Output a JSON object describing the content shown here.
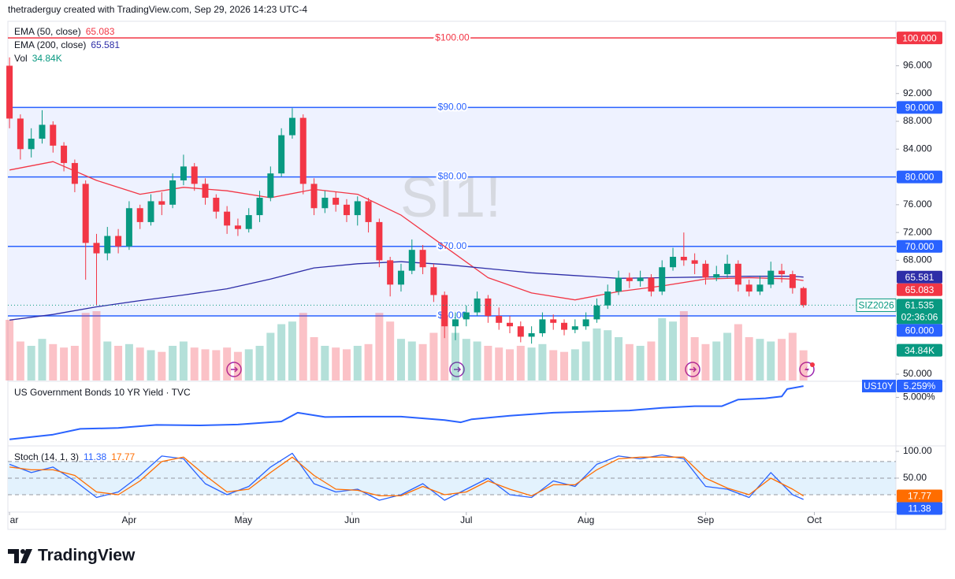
{
  "header": {
    "text": "thetraderguy created with TradingView.com, Sep 29, 2026 14:23 UTC-4"
  },
  "footer": {
    "brand": "TradingView"
  },
  "x_axis": {
    "xlim": [
      -0.3,
      163
    ],
    "xticks": [
      {
        "value": 0,
        "label": "ar"
      },
      {
        "value": 22,
        "label": "Apr"
      },
      {
        "value": 43,
        "label": "May"
      },
      {
        "value": 63,
        "label": "Jun"
      },
      {
        "value": 84,
        "label": "Jul"
      },
      {
        "value": 106,
        "label": "Aug"
      },
      {
        "value": 128,
        "label": "Sep"
      },
      {
        "value": 148,
        "label": "Oct"
      }
    ]
  },
  "chart_data": [
    {
      "type": "candlestick",
      "watermark": "SI1!",
      "symbol": "SIZ2026",
      "countdown": "02:36:06",
      "up_color": "#089981",
      "down_color": "#f23645",
      "x": [
        0,
        2,
        4,
        6,
        8,
        10,
        12,
        14,
        16,
        18,
        20,
        22,
        24,
        26,
        28,
        30,
        32,
        34,
        36,
        38,
        40,
        42,
        44,
        46,
        48,
        50,
        52,
        54,
        56,
        58,
        60,
        62,
        64,
        66,
        68,
        70,
        72,
        74,
        76,
        78,
        80,
        82,
        84,
        86,
        88,
        90,
        92,
        94,
        96,
        98,
        100,
        102,
        104,
        106,
        108,
        110,
        112,
        114,
        116,
        118,
        120,
        122,
        124,
        126,
        128,
        130,
        132,
        134,
        136,
        138,
        140,
        142,
        144,
        146
      ],
      "open": [
        96.0,
        88.4,
        84.0,
        85.5,
        87.5,
        84.5,
        82.0,
        79.0,
        70.5,
        69.0,
        71.5,
        70.0,
        75.5,
        73.5,
        76.5,
        76.0,
        79.5,
        81.5,
        79.0,
        77.0,
        75.0,
        73.0,
        72.5,
        74.5,
        77.0,
        80.5,
        86.0,
        88.5,
        79.0,
        75.5,
        77.0,
        76.0,
        74.5,
        76.5,
        73.5,
        68.0,
        64.5,
        66.5,
        69.5,
        67.0,
        63.0,
        58.5,
        59.5,
        60.5,
        62.5,
        60.0,
        59.0,
        58.5,
        57.0,
        57.5,
        59.5,
        59.0,
        58.0,
        58.5,
        59.5,
        61.5,
        63.5,
        65.5,
        65.0,
        65.5,
        63.5,
        67.0,
        68.5,
        68.0,
        67.5,
        65.5,
        66.0,
        67.5,
        64.5,
        63.5,
        64.5,
        66.5,
        66.0,
        64.0
      ],
      "high": [
        97.2,
        89.0,
        87.0,
        89.6,
        88.0,
        85.0,
        82.5,
        79.5,
        71.8,
        72.8,
        72.5,
        76.5,
        76.0,
        77.5,
        77.8,
        80.5,
        83.2,
        82.0,
        79.8,
        77.5,
        75.8,
        74.0,
        75.5,
        78.0,
        81.5,
        87.0,
        89.9,
        89.0,
        79.8,
        78.0,
        77.8,
        76.8,
        77.2,
        77.0,
        74.0,
        68.5,
        67.5,
        71.0,
        70.2,
        67.5,
        63.5,
        60.5,
        61.5,
        63.5,
        63.0,
        61.2,
        60.0,
        59.2,
        58.5,
        60.5,
        60.2,
        59.5,
        59.5,
        60.5,
        62.5,
        64.5,
        66.5,
        66.2,
        66.5,
        66.0,
        68.0,
        69.8,
        72.0,
        69.0,
        68.0,
        67.2,
        68.8,
        68.0,
        65.2,
        65.8,
        67.8,
        67.5,
        66.5,
        64.2
      ],
      "low": [
        87.0,
        82.5,
        82.8,
        84.8,
        83.5,
        80.8,
        77.8,
        65.2,
        61.5,
        68.0,
        69.0,
        69.5,
        72.5,
        73.0,
        74.5,
        75.5,
        78.8,
        78.0,
        76.0,
        74.0,
        71.8,
        71.5,
        72.0,
        73.5,
        76.5,
        80.0,
        85.5,
        77.5,
        74.5,
        74.8,
        75.0,
        73.5,
        73.0,
        72.0,
        67.0,
        62.8,
        63.5,
        66.0,
        66.0,
        62.0,
        56.8,
        56.5,
        58.5,
        60.0,
        59.0,
        58.0,
        57.5,
        56.2,
        56.0,
        57.0,
        58.0,
        57.2,
        57.5,
        58.0,
        59.0,
        61.0,
        63.0,
        64.0,
        64.2,
        62.8,
        63.0,
        66.5,
        67.2,
        66.0,
        64.5,
        65.0,
        65.5,
        63.5,
        62.8,
        63.0,
        64.0,
        64.8,
        63.2,
        61.2
      ],
      "close": [
        88.4,
        84.0,
        85.5,
        87.5,
        84.5,
        82.0,
        79.0,
        70.5,
        69.0,
        71.5,
        70.0,
        75.5,
        73.5,
        76.5,
        76.0,
        79.5,
        81.5,
        79.0,
        77.0,
        75.0,
        73.0,
        72.5,
        74.5,
        77.0,
        80.5,
        86.0,
        88.5,
        79.0,
        75.5,
        77.0,
        76.0,
        74.5,
        76.5,
        73.5,
        68.0,
        64.5,
        66.5,
        69.5,
        67.0,
        63.0,
        58.5,
        59.5,
        60.5,
        62.5,
        60.0,
        59.0,
        58.5,
        57.0,
        57.5,
        59.5,
        59.0,
        58.0,
        58.5,
        59.5,
        61.5,
        63.5,
        65.5,
        65.0,
        65.5,
        63.5,
        67.0,
        68.5,
        68.0,
        67.5,
        65.5,
        66.0,
        67.5,
        64.5,
        63.5,
        64.5,
        66.5,
        66.0,
        64.0,
        61.535
      ],
      "ylim": [
        50.7,
        102.4
      ],
      "yticks": [
        {
          "value": 96,
          "label": "96.000"
        },
        {
          "value": 92,
          "label": "92.000"
        },
        {
          "value": 88,
          "label": "88.000"
        },
        {
          "value": 84,
          "label": "84.000"
        },
        {
          "value": 76,
          "label": "76.000"
        },
        {
          "value": 72,
          "label": "72.000"
        },
        {
          "value": 68,
          "label": "68.000"
        },
        {
          "value": 50,
          "label": "50.000"
        }
      ],
      "levels": [
        {
          "value": 100,
          "label": "$100.00",
          "tag": "100.000",
          "color": "#f23645"
        },
        {
          "value": 90,
          "label": "$90.00",
          "tag": "90.000",
          "color": "#2962ff"
        },
        {
          "value": 80,
          "label": "$80.00",
          "tag": "80.000",
          "color": "#2962ff"
        },
        {
          "value": 70,
          "label": "$70.00",
          "tag": "70.000",
          "color": "#2962ff"
        },
        {
          "value": 60,
          "label": "$60.00",
          "tag": "60.000",
          "color": "#2962ff"
        }
      ],
      "band": [
        60,
        90
      ],
      "band_color": "#eef2ff",
      "series": [
        {
          "name": "EMA (50, close)",
          "color": "#f23645",
          "x": [
            0,
            8,
            16,
            24,
            32,
            40,
            48,
            56,
            64,
            72,
            80,
            88,
            96,
            104,
            112,
            120,
            128,
            136,
            144,
            146
          ],
          "values": [
            81.0,
            82.2,
            79.5,
            77.5,
            78.5,
            78.0,
            77.0,
            78.2,
            77.5,
            74.5,
            70.0,
            65.5,
            63.3,
            62.3,
            63.5,
            64.3,
            65.3,
            65.5,
            65.3,
            65.083
          ]
        },
        {
          "name": "EMA (200, close)",
          "color": "#2e2ea8",
          "x": [
            0,
            8,
            16,
            24,
            32,
            40,
            48,
            56,
            64,
            72,
            80,
            88,
            96,
            104,
            112,
            120,
            128,
            136,
            144,
            146
          ],
          "values": [
            59.4,
            60.2,
            61.3,
            62.2,
            63.0,
            63.9,
            65.3,
            66.9,
            67.5,
            67.8,
            67.4,
            66.8,
            66.2,
            65.8,
            65.4,
            65.5,
            65.6,
            65.7,
            65.7,
            65.581
          ]
        }
      ],
      "volume": {
        "name": "Vol",
        "last_label": "34.84K",
        "values": [
          70,
          45,
          40,
          48,
          42,
          38,
          40,
          78,
          80,
          45,
          40,
          42,
          38,
          35,
          33,
          40,
          45,
          38,
          36,
          35,
          38,
          33,
          36,
          40,
          55,
          65,
          68,
          78,
          50,
          40,
          38,
          36,
          40,
          42,
          78,
          68,
          48,
          45,
          42,
          55,
          75,
          55,
          48,
          45,
          40,
          38,
          36,
          40,
          38,
          42,
          35,
          33,
          36,
          45,
          60,
          58,
          50,
          42,
          40,
          45,
          72,
          68,
          80,
          50,
          42,
          45,
          55,
          65,
          50,
          48,
          45,
          48,
          55,
          34.84
        ]
      }
    },
    {
      "type": "line",
      "title": "US Government Bonds 10 YR Yield · TVC",
      "symbol": "US10Y",
      "color": "#2962ff",
      "x": [
        0,
        8,
        13,
        20,
        27,
        35,
        42,
        50,
        53,
        58,
        65,
        72,
        80,
        83,
        85,
        92,
        100,
        108,
        114,
        120,
        126,
        131,
        134,
        139,
        142,
        143,
        146
      ],
      "values": [
        4.04,
        4.15,
        4.28,
        4.3,
        4.37,
        4.36,
        4.38,
        4.45,
        4.65,
        4.55,
        4.56,
        4.56,
        4.48,
        4.43,
        4.5,
        4.58,
        4.65,
        4.68,
        4.7,
        4.76,
        4.8,
        4.8,
        4.95,
        4.98,
        5.02,
        5.19,
        5.259
      ],
      "last_label": "5.259%",
      "ylim": [
        3.91,
        5.35
      ],
      "yticks": [
        {
          "value": 5,
          "label": "5.000%"
        }
      ]
    },
    {
      "type": "line",
      "title": "Stoch (14, 1, 3)",
      "ylim": [
        -11.4,
        107
      ],
      "yticks": [
        {
          "value": 100,
          "label": "100.00"
        },
        {
          "value": 50,
          "label": "50.00"
        }
      ],
      "band": [
        20,
        80
      ],
      "band_color": "#e3f2fd",
      "guides": [
        80,
        50,
        20
      ],
      "series": [
        {
          "color": "#2962ff",
          "x": [
            0,
            4,
            8,
            12,
            16,
            20,
            24,
            28,
            32,
            36,
            40,
            44,
            48,
            52,
            56,
            60,
            64,
            68,
            72,
            76,
            80,
            84,
            88,
            92,
            96,
            100,
            104,
            108,
            112,
            116,
            120,
            124,
            128,
            132,
            136,
            140,
            144,
            146
          ],
          "values": [
            75,
            60,
            70,
            45,
            15,
            25,
            55,
            90,
            85,
            40,
            20,
            35,
            70,
            95,
            40,
            25,
            30,
            10,
            20,
            40,
            10,
            30,
            50,
            20,
            15,
            45,
            35,
            75,
            90,
            85,
            92,
            85,
            35,
            30,
            15,
            60,
            20,
            11.38
          ]
        },
        {
          "color": "#ff6d00",
          "x": [
            0,
            4,
            8,
            12,
            16,
            20,
            24,
            28,
            32,
            36,
            40,
            44,
            48,
            52,
            56,
            60,
            64,
            68,
            72,
            76,
            80,
            84,
            88,
            92,
            96,
            100,
            104,
            108,
            112,
            116,
            120,
            124,
            128,
            132,
            136,
            140,
            144,
            146
          ],
          "values": [
            70,
            65,
            65,
            55,
            25,
            20,
            45,
            80,
            88,
            55,
            25,
            30,
            60,
            88,
            55,
            30,
            28,
            18,
            18,
            35,
            20,
            25,
            45,
            30,
            18,
            38,
            38,
            65,
            85,
            88,
            88,
            88,
            50,
            32,
            20,
            50,
            30,
            17.77
          ]
        }
      ]
    }
  ]
}
